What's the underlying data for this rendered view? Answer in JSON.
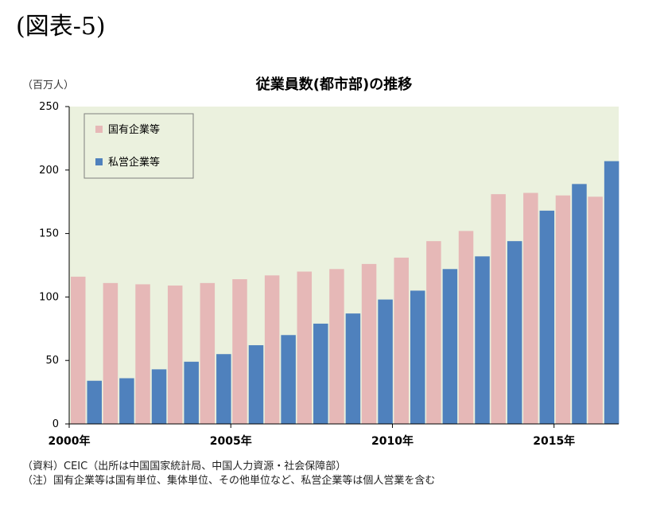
{
  "figure_label": "(図表-5)",
  "chart_data": {
    "type": "bar",
    "title": "従業員数(都市部)の推移",
    "unit": "（百万人）",
    "ylim": [
      0,
      250
    ],
    "yticks": [
      0,
      50,
      100,
      150,
      200,
      250
    ],
    "years": [
      2000,
      2001,
      2002,
      2003,
      2004,
      2005,
      2006,
      2007,
      2008,
      2009,
      2010,
      2011,
      2012,
      2013,
      2014,
      2015,
      2016
    ],
    "xtick_labels": [
      {
        "year": 2000,
        "label": "2000年"
      },
      {
        "year": 2005,
        "label": "2005年"
      },
      {
        "year": 2010,
        "label": "2010年"
      },
      {
        "year": 2015,
        "label": "2015年"
      }
    ],
    "series": [
      {
        "name": "国有企業等",
        "color": "#e6b8b7",
        "values": [
          116,
          111,
          110,
          109,
          111,
          114,
          117,
          120,
          122,
          126,
          131,
          144,
          152,
          181,
          182,
          180,
          179
        ]
      },
      {
        "name": "私営企業等",
        "color": "#4f81bd",
        "values": [
          34,
          36,
          43,
          49,
          55,
          62,
          70,
          79,
          87,
          98,
          105,
          122,
          132,
          144,
          168,
          189,
          207
        ]
      }
    ],
    "legend_position": "top-left",
    "plot_background": "#ebf1de",
    "grid": false
  },
  "notes": [
    "（資料）CEIC（出所は中国国家統計局、中国人力資源・社会保障部）",
    "（注）国有企業等は国有単位、集体単位、その他単位など、私営企業等は個人営業を含む"
  ]
}
